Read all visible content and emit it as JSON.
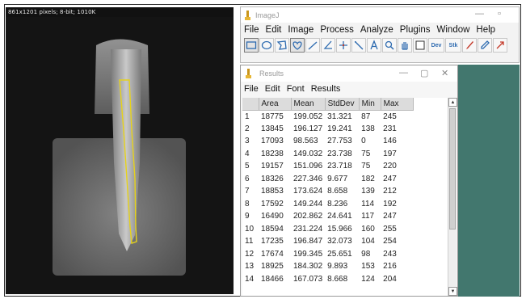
{
  "image_window": {
    "info": "861x1201 pixels; 8-bit; 1010K"
  },
  "imagej": {
    "title": "ImageJ",
    "menu": [
      "File",
      "Edit",
      "Image",
      "Process",
      "Analyze",
      "Plugins",
      "Window",
      "Help"
    ],
    "tools": [
      {
        "name": "rectangle-tool-icon",
        "glyph": "▭",
        "active": true
      },
      {
        "name": "oval-tool-icon",
        "glyph": "◯"
      },
      {
        "name": "polygon-tool-icon",
        "glyph": "⬠"
      },
      {
        "name": "freehand-tool-icon",
        "glyph": "♡",
        "active": true
      },
      {
        "name": "line-tool-icon",
        "glyph": "╱"
      },
      {
        "name": "angle-tool-icon",
        "glyph": "∠"
      },
      {
        "name": "point-tool-icon",
        "glyph": "✛"
      },
      {
        "name": "wand-tool-icon",
        "glyph": "↖"
      },
      {
        "name": "text-tool-icon",
        "glyph": "A"
      },
      {
        "name": "magnifier-tool-icon",
        "glyph": "🔍"
      },
      {
        "name": "hand-tool-icon",
        "glyph": "✋"
      },
      {
        "name": "color-picker-tool-icon",
        "glyph": "□"
      },
      {
        "name": "dev-tool-icon",
        "glyph": "Dev"
      },
      {
        "name": "stk-tool-icon",
        "glyph": "Stk"
      },
      {
        "name": "brush-tool-icon",
        "glyph": "✎"
      },
      {
        "name": "dropper-tool-icon",
        "glyph": "💧"
      },
      {
        "name": "arrow-tool-icon",
        "glyph": "↗"
      }
    ]
  },
  "results": {
    "title": "Results",
    "menu": [
      "File",
      "Edit",
      "Font",
      "Results"
    ],
    "columns": [
      "",
      "Area",
      "Mean",
      "StdDev",
      "Min",
      "Max"
    ],
    "rows": [
      [
        "1",
        "18775",
        "199.052",
        "31.321",
        "87",
        "245"
      ],
      [
        "2",
        "13845",
        "196.127",
        "19.241",
        "138",
        "231"
      ],
      [
        "3",
        "17093",
        "98.563",
        "27.753",
        "0",
        "146"
      ],
      [
        "4",
        "18238",
        "149.032",
        "23.738",
        "75",
        "197"
      ],
      [
        "5",
        "19157",
        "151.096",
        "23.718",
        "75",
        "220"
      ],
      [
        "6",
        "18326",
        "227.346",
        "9.677",
        "182",
        "247"
      ],
      [
        "7",
        "18853",
        "173.624",
        "8.658",
        "139",
        "212"
      ],
      [
        "8",
        "17592",
        "149.244",
        "8.236",
        "114",
        "192"
      ],
      [
        "9",
        "16490",
        "202.862",
        "24.641",
        "117",
        "247"
      ],
      [
        "10",
        "18594",
        "231.224",
        "15.966",
        "160",
        "255"
      ],
      [
        "11",
        "17235",
        "196.847",
        "32.073",
        "104",
        "254"
      ],
      [
        "12",
        "17674",
        "199.345",
        "25.651",
        "98",
        "243"
      ],
      [
        "13",
        "18925",
        "184.302",
        "9.893",
        "153",
        "216"
      ],
      [
        "14",
        "18466",
        "167.073",
        "8.668",
        "124",
        "204"
      ]
    ]
  }
}
